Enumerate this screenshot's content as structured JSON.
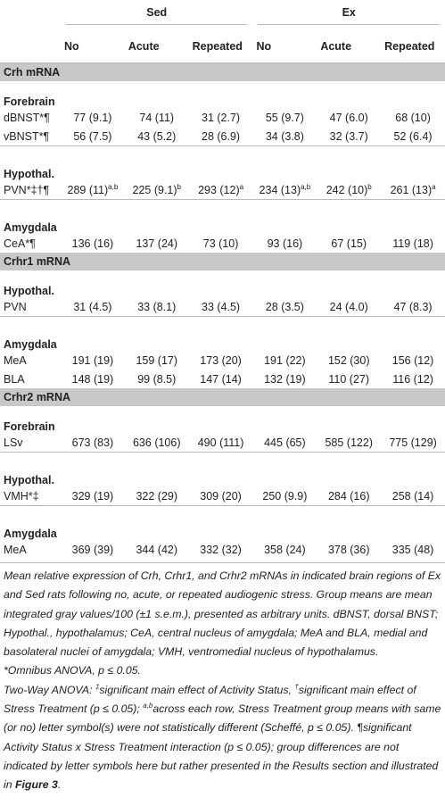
{
  "table": {
    "header": {
      "groups": [
        "Sed",
        "Ex"
      ],
      "columns": [
        "No",
        "Acute",
        "Repeated",
        "No",
        "Acute",
        "Repeated"
      ]
    },
    "sections": [
      {
        "title": "Crh mRNA",
        "groups": [
          {
            "title": "Forebrain",
            "rows": [
              {
                "label": "dBNST*¶",
                "cells": [
                  "77 (9.1)",
                  "74 (11)",
                  "31 (2.7)",
                  "55 (9.7)",
                  "47 (6.0)",
                  "68 (10)"
                ]
              },
              {
                "label": "vBNST*¶",
                "cells": [
                  "56 (7.5)",
                  "43 (5.2)",
                  "28 (6.9)",
                  "34 (3.8)",
                  "32 (3.7)",
                  "52 (6.4)"
                ]
              }
            ]
          },
          {
            "title": "Hypothal.",
            "rows": [
              {
                "label": "PVN*‡†¶",
                "cells": [
                  {
                    "text": "289 (11)",
                    "sup": "a,b"
                  },
                  {
                    "text": "225 (9.1)",
                    "sup": "b"
                  },
                  {
                    "text": "293 (12)",
                    "sup": "a"
                  },
                  {
                    "text": "234 (13)",
                    "sup": "a,b"
                  },
                  {
                    "text": "242 (10)",
                    "sup": "b"
                  },
                  {
                    "text": "261 (13)",
                    "sup": "a"
                  }
                ]
              }
            ]
          },
          {
            "title": "Amygdala",
            "rows": [
              {
                "label": "CeA*¶",
                "cells": [
                  "136 (16)",
                  "137 (24)",
                  "73 (10)",
                  "93 (16)",
                  "67 (15)",
                  "119 (18)"
                ]
              }
            ]
          }
        ]
      },
      {
        "title": "Crhr1 mRNA",
        "groups": [
          {
            "title": "Hypothal.",
            "rows": [
              {
                "label": "PVN",
                "cells": [
                  "31 (4.5)",
                  "33 (8.1)",
                  "33 (4.5)",
                  "28 (3.5)",
                  "24 (4.0)",
                  "47 (8.3)"
                ]
              }
            ]
          },
          {
            "title": "Amygdala",
            "rows": [
              {
                "label": "MeA",
                "cells": [
                  "191 (19)",
                  "159 (17)",
                  "173 (20)",
                  "191 (22)",
                  "152 (30)",
                  "156 (12)"
                ]
              },
              {
                "label": "BLA",
                "cells": [
                  "148 (19)",
                  "99 (8.5)",
                  "147 (14)",
                  "132 (19)",
                  "110 (27)",
                  "116 (12)"
                ]
              }
            ]
          }
        ]
      },
      {
        "title": "Crhr2 mRNA",
        "groups": [
          {
            "title": "Forebrain",
            "rows": [
              {
                "label": "LSv",
                "cells": [
                  "673 (83)",
                  "636 (106)",
                  "490 (111)",
                  "445 (65)",
                  "585 (122)",
                  "775 (129)"
                ]
              }
            ]
          },
          {
            "title": "Hypothal.",
            "rows": [
              {
                "label": "VMH*‡",
                "cells": [
                  "329 (19)",
                  "322 (29)",
                  "309 (20)",
                  "250 (9.9)",
                  "284 (16)",
                  "258 (14)"
                ]
              }
            ]
          },
          {
            "title": "Amygdala",
            "rows": [
              {
                "label": "MeA",
                "cells": [
                  "369 (39)",
                  "344 (42)",
                  "332 (32)",
                  "358 (24)",
                  "378 (36)",
                  "335 (48)"
                ]
              }
            ]
          }
        ]
      }
    ]
  },
  "notes": [
    [
      "Mean relative expression of Crh, Crhr1, and Crhr2 mRNAs in indicated brain regions of Ex and Sed rats following no, acute, or repeated audiogenic stress. Group means are mean integrated gray values/100 (±1 s.e.m.), presented as arbitrary units. dBNST, dorsal BNST; Hypothal., hypothalamus; CeA, central nucleus of amygdala; MeA and BLA, medial and basolateral nuclei of amygdala; VMH, ventromedial nucleus of hypothalamus."
    ],
    [
      "*Omnibus ANOVA, p ≤ 0.05."
    ],
    [
      "Two-Way ANOVA: ",
      {
        "sup": "‡"
      },
      "significant main effect of Activity Status, ",
      {
        "sup": "†"
      },
      "significant main effect of Stress Treatment (p ≤ 0.05); ",
      {
        "sup": "a,b"
      },
      "across each row, Stress Treatment group means with same (or no) letter symbol(s) were not statistically different (Scheffé, p ≤ 0.05). ¶significant Activity Status x Stress Treatment interaction (p ≤ 0.05); group differences are not indicated by letter symbols here but rather presented in the Results section and illustrated in ",
      {
        "bold": "Figure 3"
      },
      "."
    ]
  ]
}
